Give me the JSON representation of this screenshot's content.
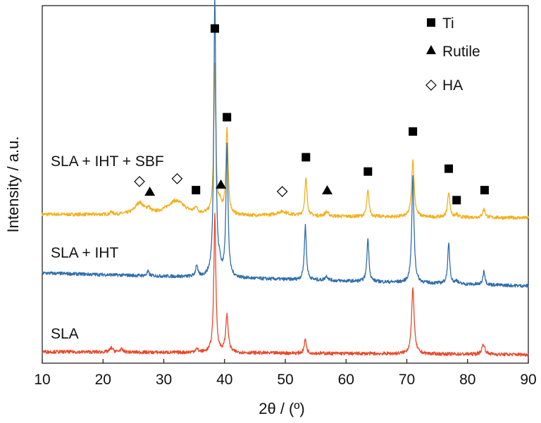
{
  "chart_data": {
    "type": "line",
    "xlabel": "2θ / (º)",
    "ylabel": "Intensity / a.u.",
    "xlim": [
      10,
      90
    ],
    "xticks": [
      10,
      20,
      30,
      40,
      50,
      60,
      70,
      80,
      90
    ],
    "yticks_shown": false,
    "grid": false,
    "legend_position": "top-right",
    "legend": [
      {
        "marker": "square",
        "label": "Ti"
      },
      {
        "marker": "triangle",
        "label": "Rutile"
      },
      {
        "marker": "diamond",
        "label": "HA"
      }
    ],
    "series": [
      {
        "name": "SLA + IHT + SBF",
        "color": "#F2B01E",
        "baseline": 0.52,
        "slope": -0.012,
        "peaks": [
          [
            21.4,
            0.01,
            0.2
          ],
          [
            26.0,
            0.04,
            0.9
          ],
          [
            27.5,
            0.015,
            0.3
          ],
          [
            32.0,
            0.05,
            1.8
          ],
          [
            35.3,
            0.02,
            0.25
          ],
          [
            38.4,
            0.52,
            0.2
          ],
          [
            39.3,
            0.03,
            0.3
          ],
          [
            40.4,
            0.3,
            0.22
          ],
          [
            49.5,
            0.015,
            1.2
          ],
          [
            53.4,
            0.13,
            0.22
          ],
          [
            56.8,
            0.015,
            0.35
          ],
          [
            63.6,
            0.09,
            0.22
          ],
          [
            71.0,
            0.2,
            0.25
          ],
          [
            76.9,
            0.09,
            0.22
          ],
          [
            78.2,
            0.01,
            0.2
          ],
          [
            82.7,
            0.03,
            0.25
          ]
        ]
      },
      {
        "name": "SLA + IHT",
        "color": "#2F6EAA",
        "baseline": 0.315,
        "slope": -0.045,
        "peaks": [
          [
            27.4,
            0.015,
            0.2
          ],
          [
            35.4,
            0.04,
            0.2
          ],
          [
            38.4,
            0.98,
            0.2
          ],
          [
            39.2,
            0.03,
            0.25
          ],
          [
            40.4,
            0.46,
            0.2
          ],
          [
            53.3,
            0.19,
            0.2
          ],
          [
            56.8,
            0.015,
            0.3
          ],
          [
            63.6,
            0.15,
            0.2
          ],
          [
            71.0,
            0.37,
            0.22
          ],
          [
            76.9,
            0.14,
            0.2
          ],
          [
            78.2,
            0.012,
            0.2
          ],
          [
            82.7,
            0.05,
            0.2
          ]
        ]
      },
      {
        "name": "SLA",
        "color": "#E8492A",
        "baseline": 0.04,
        "slope": -0.01,
        "peaks": [
          [
            21.4,
            0.015,
            0.3
          ],
          [
            23.0,
            0.01,
            0.3
          ],
          [
            35.4,
            0.012,
            0.3
          ],
          [
            38.4,
            0.48,
            0.2
          ],
          [
            40.4,
            0.13,
            0.25
          ],
          [
            53.3,
            0.05,
            0.2
          ],
          [
            71.0,
            0.23,
            0.25
          ],
          [
            82.6,
            0.035,
            0.3
          ]
        ]
      }
    ],
    "annotations": [
      {
        "series": "SLA + IHT + SBF",
        "marker": "square",
        "x": 38.4,
        "y": 1.17
      },
      {
        "series": "SLA + IHT + SBF",
        "marker": "square",
        "x": 40.4,
        "y": 0.86
      },
      {
        "series": "SLA + IHT + SBF",
        "marker": "square",
        "x": 35.3,
        "y": 0.605
      },
      {
        "series": "SLA + IHT + SBF",
        "marker": "square",
        "x": 53.4,
        "y": 0.72
      },
      {
        "series": "SLA + IHT + SBF",
        "marker": "square",
        "x": 63.6,
        "y": 0.67
      },
      {
        "series": "SLA + IHT + SBF",
        "marker": "square",
        "x": 71.0,
        "y": 0.81
      },
      {
        "series": "SLA + IHT + SBF",
        "marker": "square",
        "x": 76.9,
        "y": 0.68
      },
      {
        "series": "SLA + IHT + SBF",
        "marker": "square",
        "x": 78.2,
        "y": 0.57
      },
      {
        "series": "SLA + IHT + SBF",
        "marker": "square",
        "x": 82.8,
        "y": 0.605
      },
      {
        "series": "SLA + IHT + SBF",
        "marker": "triangle",
        "x": 27.7,
        "y": 0.6
      },
      {
        "series": "SLA + IHT + SBF",
        "marker": "triangle",
        "x": 39.4,
        "y": 0.625
      },
      {
        "series": "SLA + IHT + SBF",
        "marker": "triangle",
        "x": 56.9,
        "y": 0.605
      },
      {
        "series": "SLA + IHT + SBF",
        "marker": "diamond",
        "x": 26.0,
        "y": 0.635
      },
      {
        "series": "SLA + IHT + SBF",
        "marker": "diamond",
        "x": 32.2,
        "y": 0.645
      },
      {
        "series": "SLA + IHT + SBF",
        "marker": "diamond",
        "x": 49.5,
        "y": 0.6
      }
    ],
    "y_range": [
      0,
      1.25
    ]
  },
  "colors": {
    "axis": "#111111",
    "marker": "#000000"
  }
}
